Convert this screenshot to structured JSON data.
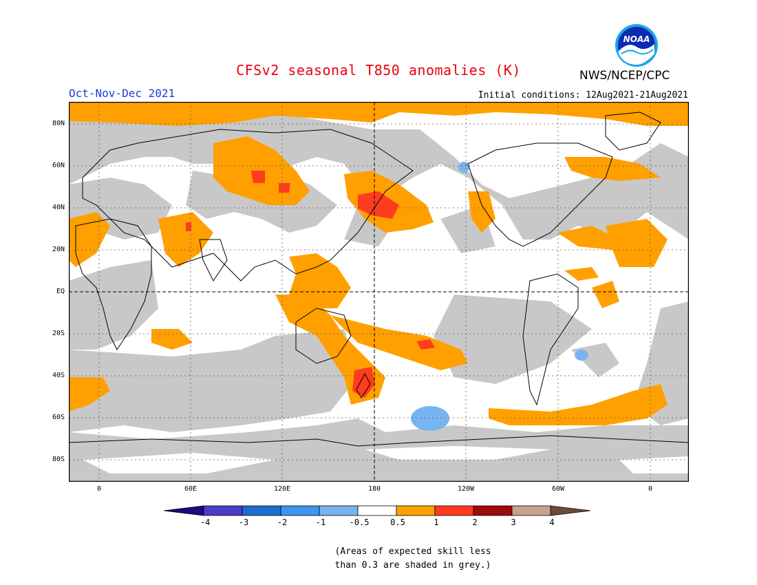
{
  "header": {
    "title": "CFSv2 seasonal T850 anomalies (K)",
    "season": "Oct-Nov-Dec 2021",
    "initial_conditions": "Initial conditions: 12Aug2021-21Aug2021",
    "agency": "NWS/NCEP/CPC",
    "logo_icon": "noaa-logo-icon",
    "logo_text": "NOAA"
  },
  "map": {
    "lat_labels": [
      "80N",
      "60N",
      "40N",
      "20N",
      "EQ",
      "20S",
      "40S",
      "60S",
      "80S"
    ],
    "lon_labels": [
      "0",
      "60E",
      "120E",
      "180",
      "120W",
      "60W",
      "0"
    ],
    "colors": {
      "grey_low_skill": "#c8c8c8",
      "warm_0_5_1": "#ffa000",
      "warm_1_2": "#ff3c1e",
      "cool_m1_m0_5": "#78b4f0",
      "land_outline": "#000000"
    }
  },
  "colorbar": {
    "labels": [
      "-4",
      "-3",
      "-2",
      "-1",
      "-0.5",
      "0.5",
      "1",
      "2",
      "3",
      "4"
    ],
    "colors": [
      "#1e0a82",
      "#4b3cc8",
      "#1e6ed2",
      "#3c96f0",
      "#78b4f0",
      "#ffffff",
      "#ffa000",
      "#ff3c1e",
      "#a00a0a",
      "#c8a08c",
      "#6e4a3a"
    ]
  },
  "note": {
    "line1": "(Areas of expected skill less",
    "line2": "than 0.3 are shaded in grey.)"
  }
}
